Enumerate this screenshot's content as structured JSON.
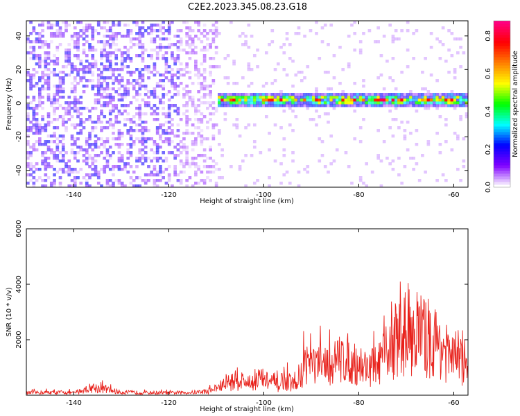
{
  "title": "C2E2.2023.345.08.23.G18",
  "chart_data": [
    {
      "type": "heatmap",
      "title": "C2E2.2023.345.08.23.G18",
      "xlabel": "Height of straight line (km)",
      "ylabel": "Frequency (Hz)",
      "xlim": [
        -150,
        -57
      ],
      "ylim": [
        -50,
        49
      ],
      "x_ticks": [
        -140,
        -120,
        -100,
        -80,
        -60
      ],
      "y_ticks": [
        -40,
        -20,
        0,
        20,
        40
      ],
      "colorbar": {
        "label": "Normalized spectral amplitude",
        "range": [
          0.0,
          0.88
        ],
        "ticks": [
          0.0,
          0.2,
          0.4,
          0.6,
          0.8
        ],
        "colors": [
          "#ffffff",
          "#8000ff",
          "#0000ff",
          "#00ffff",
          "#00ff00",
          "#ffff00",
          "#ff8000",
          "#ff0000",
          "#ff0080"
        ]
      },
      "description_values": {
        "noise_region_x": [
          -150,
          -110
        ],
        "noise_amplitude": 0.15,
        "signal_band_center_freq": 2,
        "signal_band_halfwidth_freq": 4,
        "signal_region_x": [
          -110,
          -57
        ],
        "signal_peak_amplitude": 0.85
      }
    },
    {
      "type": "line",
      "xlabel": "Height of straight line (km)",
      "ylabel": "SNR (10 * v/v)",
      "xlim": [
        -150,
        -57
      ],
      "ylim": [
        0,
        6000
      ],
      "x_ticks": [
        -140,
        -120,
        -100,
        -80,
        -60
      ],
      "y_ticks": [
        2000,
        4000,
        6000
      ],
      "color": "#e8201a",
      "series": [
        {
          "x": [
            -150,
            -145,
            -140,
            -136,
            -130,
            -125,
            -120,
            -115,
            -112,
            -110,
            -107,
            -105,
            -103,
            -101,
            -99,
            -97,
            -95,
            -93,
            -91,
            -89,
            -87,
            -85,
            -83,
            -81,
            -79,
            -77,
            -75,
            -73,
            -71,
            -69,
            -67,
            -65,
            -63,
            -61,
            -59,
            -57
          ],
          "y": [
            120,
            150,
            120,
            400,
            150,
            130,
            120,
            140,
            200,
            350,
            700,
            800,
            600,
            900,
            700,
            500,
            700,
            500,
            1800,
            1500,
            1400,
            1700,
            2000,
            1600,
            1500,
            1400,
            1800,
            2600,
            3000,
            3400,
            3200,
            2600,
            2800,
            1900,
            2000,
            1200
          ]
        }
      ]
    }
  ]
}
